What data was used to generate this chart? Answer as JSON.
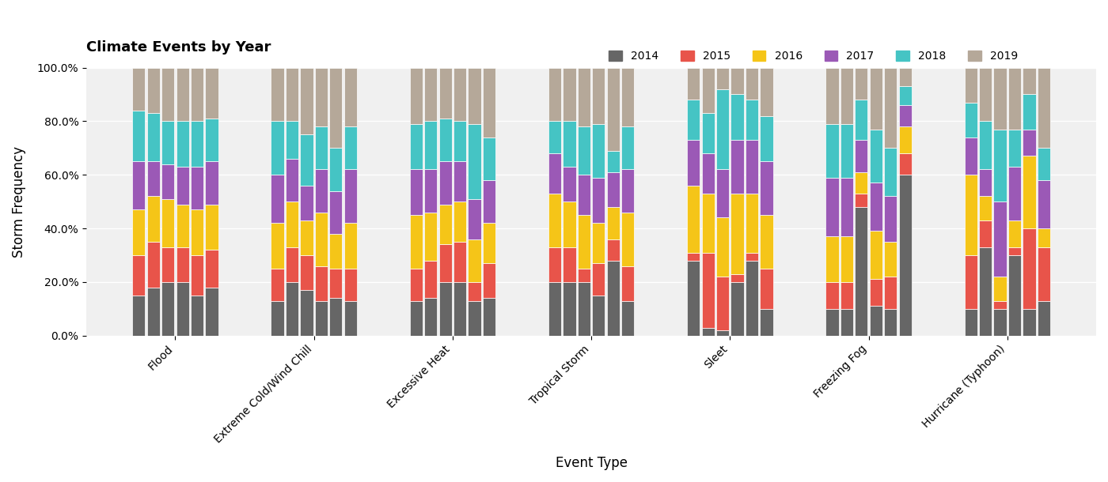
{
  "title": "Climate Events by Year",
  "xlabel": "Event Type",
  "ylabel": "Storm Frequency",
  "years": [
    "2014",
    "2015",
    "2016",
    "2017",
    "2018",
    "2019"
  ],
  "year_colors": [
    "#666666",
    "#E8544A",
    "#F5C518",
    "#9B59B6",
    "#45C4C4",
    "#B5A899"
  ],
  "categories": [
    "Flood",
    "Extreme Cold/Wind Chill",
    "Excessive Heat",
    "Tropical Storm",
    "Sleet",
    "Freezing Fog",
    "Hurricane (Typhoon)"
  ],
  "all_cat_data": [
    [
      [
        15,
        30,
        47,
        65,
        84,
        100
      ],
      [
        18,
        35,
        52,
        65,
        83,
        100
      ],
      [
        20,
        33,
        51,
        64,
        80,
        100
      ],
      [
        20,
        33,
        49,
        63,
        80,
        100
      ],
      [
        15,
        30,
        47,
        63,
        80,
        100
      ],
      [
        18,
        32,
        49,
        65,
        81,
        100
      ]
    ],
    [
      [
        13,
        25,
        42,
        60,
        80,
        100
      ],
      [
        20,
        33,
        50,
        66,
        80,
        100
      ],
      [
        17,
        30,
        43,
        56,
        75,
        100
      ],
      [
        13,
        26,
        46,
        62,
        78,
        100
      ],
      [
        14,
        25,
        38,
        54,
        70,
        100
      ],
      [
        13,
        25,
        42,
        62,
        78,
        100
      ]
    ],
    [
      [
        13,
        25,
        45,
        62,
        79,
        100
      ],
      [
        14,
        28,
        46,
        62,
        80,
        100
      ],
      [
        20,
        34,
        49,
        65,
        81,
        100
      ],
      [
        20,
        35,
        50,
        65,
        80,
        100
      ],
      [
        13,
        20,
        36,
        51,
        79,
        100
      ],
      [
        14,
        27,
        42,
        58,
        74,
        100
      ]
    ],
    [
      [
        20,
        33,
        53,
        68,
        80,
        100
      ],
      [
        20,
        33,
        50,
        63,
        80,
        100
      ],
      [
        20,
        25,
        45,
        60,
        78,
        100
      ],
      [
        15,
        27,
        42,
        59,
        79,
        100
      ],
      [
        28,
        36,
        48,
        61,
        69,
        100
      ],
      [
        13,
        26,
        46,
        62,
        78,
        100
      ]
    ],
    [
      [
        28,
        31,
        56,
        73,
        88,
        100
      ],
      [
        3,
        31,
        53,
        68,
        83,
        100
      ],
      [
        2,
        22,
        44,
        62,
        92,
        100
      ],
      [
        20,
        23,
        53,
        73,
        90,
        100
      ],
      [
        28,
        31,
        53,
        73,
        88,
        100
      ],
      [
        10,
        25,
        45,
        65,
        82,
        100
      ]
    ],
    [
      [
        10,
        20,
        37,
        59,
        79,
        100
      ],
      [
        10,
        20,
        37,
        59,
        79,
        100
      ],
      [
        48,
        53,
        61,
        73,
        88,
        100
      ],
      [
        11,
        21,
        39,
        57,
        77,
        100
      ],
      [
        10,
        22,
        35,
        52,
        70,
        100
      ],
      [
        60,
        68,
        78,
        86,
        93,
        100
      ]
    ],
    [
      [
        10,
        30,
        60,
        74,
        87,
        100
      ],
      [
        33,
        43,
        52,
        62,
        80,
        100
      ],
      [
        10,
        13,
        22,
        50,
        77,
        100
      ],
      [
        30,
        33,
        43,
        63,
        77,
        100
      ],
      [
        10,
        40,
        67,
        77,
        90,
        100
      ],
      [
        13,
        33,
        40,
        58,
        70,
        100
      ]
    ]
  ],
  "background_color": "#ffffff"
}
